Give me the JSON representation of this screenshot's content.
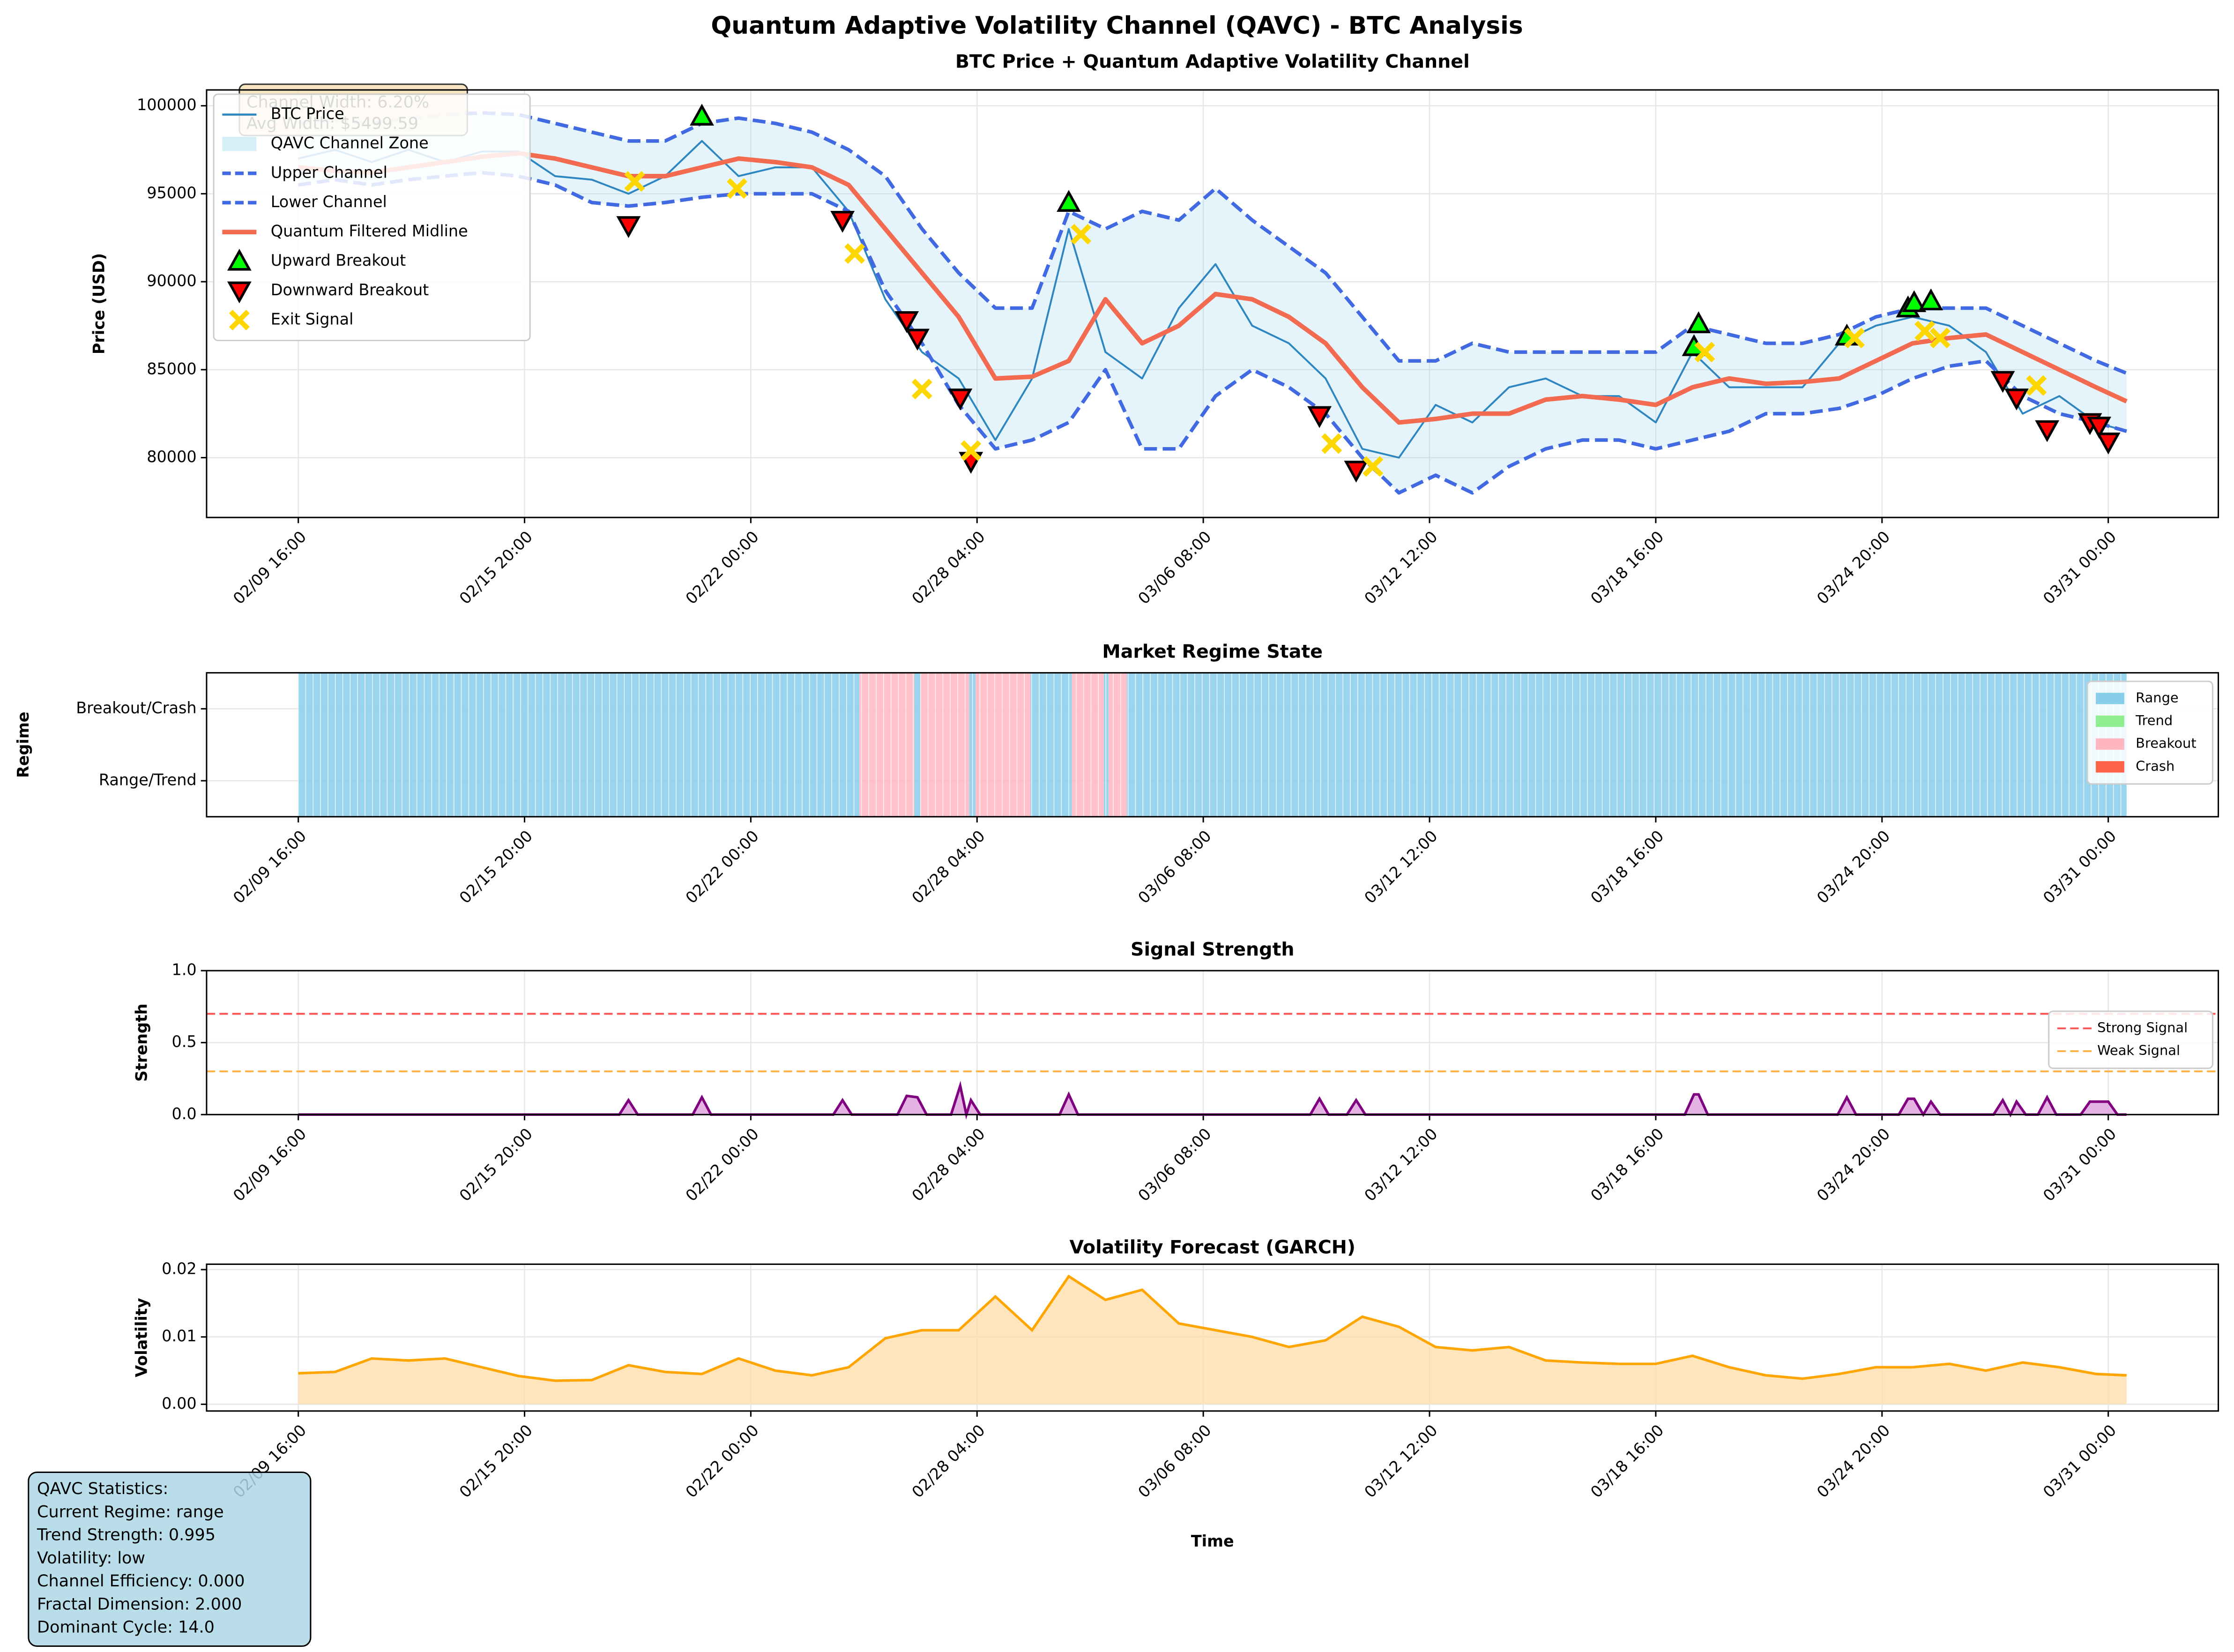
{
  "title": "Quantum Adaptive Volatility Channel (QAVC) - BTC Analysis",
  "stats": [
    "QAVC Statistics:",
    "Current Regime: range",
    "Trend Strength: 0.995",
    "Volatility: low",
    "Channel Efficiency: 0.000",
    "Fractal Dimension: 2.000",
    "Dominant Cycle: 14.0"
  ],
  "chart_data": [
    {
      "type": "line",
      "title": "BTC Price + Quantum Adaptive Volatility Channel",
      "ylabel": "Price (USD)",
      "grid": true,
      "legend": "upper left",
      "annotation": [
        "Channel Width: 6.20%",
        "Avg Width: $5499.59"
      ],
      "xlim": [
        "02/07 04:00",
        "04/03 00:00"
      ],
      "ylim": [
        76600,
        100900
      ],
      "xticks": [
        "02/09 16:00",
        "02/15 20:00",
        "02/22 00:00",
        "02/28 04:00",
        "03/06 08:00",
        "03/12 12:00",
        "03/18 16:00",
        "03/24 20:00",
        "03/31 00:00"
      ],
      "yticks": [
        80000,
        85000,
        90000,
        95000,
        100000
      ],
      "x": [
        "02/09 16:00",
        "02/10 16:00",
        "02/11 16:00",
        "02/12 16:00",
        "02/13 16:00",
        "02/14 16:00",
        "02/15 16:00",
        "02/16 16:00",
        "02/17 16:00",
        "02/18 16:00",
        "02/19 16:00",
        "02/20 16:00",
        "02/21 16:00",
        "02/22 16:00",
        "02/23 16:00",
        "02/24 16:00",
        "02/25 16:00",
        "02/26 16:00",
        "02/27 16:00",
        "02/28 16:00",
        "03/01 16:00",
        "03/02 16:00",
        "03/03 16:00",
        "03/04 16:00",
        "03/05 16:00",
        "03/06 16:00",
        "03/07 16:00",
        "03/08 16:00",
        "03/09 16:00",
        "03/10 16:00",
        "03/11 16:00",
        "03/12 16:00",
        "03/13 16:00",
        "03/14 16:00",
        "03/15 16:00",
        "03/16 16:00",
        "03/17 16:00",
        "03/18 16:00",
        "03/19 16:00",
        "03/20 16:00",
        "03/21 16:00",
        "03/22 16:00",
        "03/23 16:00",
        "03/24 16:00",
        "03/25 16:00",
        "03/26 16:00",
        "03/27 16:00",
        "03/28 16:00",
        "03/29 16:00",
        "03/30 16:00",
        "03/31 12:00"
      ],
      "band": {
        "name": "QAVC Channel Zone",
        "color": "#87ceeb",
        "between": [
          1,
          2
        ]
      },
      "series": [
        {
          "name": "BTC Price",
          "color": "#2e86c1",
          "width": 1.3,
          "values": [
            97000,
            97500,
            96800,
            97500,
            96800,
            97400,
            97400,
            96000,
            95800,
            95000,
            96000,
            98000,
            96000,
            96500,
            96500,
            94000,
            89000,
            86000,
            84500,
            81000,
            84500,
            93000,
            86000,
            84500,
            88500,
            91000,
            87500,
            86500,
            84500,
            80500,
            80000,
            83000,
            82000,
            84000,
            84500,
            83500,
            83500,
            82000,
            86000,
            84000,
            84000,
            84000,
            86500,
            87500,
            88000,
            87500,
            86000,
            82500,
            83500,
            82000,
            81500
          ]
        },
        {
          "name": "Upper Channel",
          "color": "#4169e1",
          "width": 2.5,
          "dash": true,
          "values": [
            99000,
            99200,
            99000,
            99300,
            99500,
            99600,
            99500,
            99000,
            98500,
            98000,
            98000,
            99000,
            99300,
            99000,
            98500,
            97500,
            96000,
            93000,
            90500,
            88500,
            88500,
            94000,
            93000,
            94000,
            93500,
            95300,
            93500,
            92000,
            90500,
            88000,
            85500,
            85500,
            86500,
            86000,
            86000,
            86000,
            86000,
            86000,
            87500,
            87000,
            86500,
            86500,
            87000,
            88000,
            88500,
            88500,
            88500,
            87500,
            86500,
            85500,
            84800
          ]
        },
        {
          "name": "Lower Channel",
          "color": "#4169e1",
          "width": 2.5,
          "dash": true,
          "values": [
            95500,
            95800,
            95500,
            95800,
            96000,
            96200,
            96000,
            95500,
            94500,
            94300,
            94500,
            94800,
            95000,
            95000,
            95000,
            94000,
            89500,
            86500,
            83000,
            80500,
            81000,
            82000,
            85000,
            80500,
            80500,
            83500,
            85000,
            84000,
            82500,
            80000,
            78000,
            79000,
            78000,
            79500,
            80500,
            81000,
            81000,
            80500,
            81000,
            81500,
            82500,
            82500,
            82800,
            83500,
            84500,
            85200,
            85500,
            83500,
            82500,
            82000,
            81500
          ]
        },
        {
          "name": "Quantum Filtered Midline",
          "color": "#f26b50",
          "width": 3.2,
          "values": [
            96500,
            96300,
            96200,
            96500,
            96800,
            97100,
            97300,
            97000,
            96500,
            96000,
            96000,
            96500,
            97000,
            96800,
            96500,
            95500,
            93000,
            90500,
            88000,
            84500,
            84600,
            85500,
            89000,
            86500,
            87500,
            89300,
            89000,
            88000,
            86500,
            84000,
            82000,
            82200,
            82500,
            82500,
            83300,
            83500,
            83300,
            83000,
            84000,
            84500,
            84200,
            84300,
            84500,
            85500,
            86500,
            86800,
            87000,
            86000,
            85000,
            84000,
            83200
          ]
        }
      ],
      "markers": [
        {
          "name": "Upward Breakout",
          "color": "#00ff00",
          "shape": "up",
          "x": [
            "02/20 16:00",
            "03/02 16:00",
            "03/19 17:00",
            "03/19 20:00",
            "03/23 21:00",
            "03/25 13:00",
            "03/25 17:00",
            "03/26 04:00"
          ],
          "values": [
            99400,
            94500,
            86300,
            87600,
            86900,
            88500,
            88800,
            88900
          ]
        },
        {
          "name": "Downward Breakout",
          "color": "#ff0000",
          "shape": "down",
          "x": [
            "02/18 16:00",
            "02/24 12:00",
            "02/26 06:00",
            "02/26 13:00",
            "02/27 17:00",
            "02/28 00:00",
            "03/09 12:00",
            "03/10 12:00",
            "03/28 03:00",
            "03/28 12:00",
            "03/29 08:00",
            "03/30 12:00",
            "03/30 18:00",
            "03/31 00:00"
          ],
          "values": [
            93200,
            93500,
            87800,
            86800,
            83400,
            79800,
            82400,
            79300,
            84400,
            83400,
            81600,
            82000,
            81800,
            80900
          ]
        },
        {
          "name": "Exit Signal",
          "color": "#ffd700",
          "shape": "x",
          "x": [
            "02/18 20:00",
            "02/21 15:00",
            "02/24 20:00",
            "02/26 16:00",
            "02/28 00:00",
            "03/03 00:00",
            "03/09 20:00",
            "03/10 23:00",
            "03/20 00:00",
            "03/24 02:00",
            "03/26 00:00",
            "03/26 10:00",
            "03/29 01:00"
          ],
          "values": [
            95700,
            95300,
            91600,
            83900,
            80400,
            92700,
            80800,
            79500,
            86000,
            86800,
            87200,
            86800,
            84100
          ]
        }
      ]
    },
    {
      "type": "regime",
      "title": "Market Regime State",
      "ylabel": "Regime",
      "grid": true,
      "legend": "upper right",
      "xlim": [
        "02/07 04:00",
        "04/03 00:00"
      ],
      "ylim": [
        -0.5,
        1.5
      ],
      "xticks": [
        "02/09 16:00",
        "02/15 20:00",
        "02/22 00:00",
        "02/28 04:00",
        "03/06 08:00",
        "03/12 12:00",
        "03/18 16:00",
        "03/24 20:00",
        "03/31 00:00"
      ],
      "yticks": [
        {
          "value": 0,
          "label": "Range/Trend"
        },
        {
          "value": 1,
          "label": "Breakout/Crash"
        }
      ],
      "states": [
        {
          "name": "Range",
          "color": "#87ceeb"
        },
        {
          "name": "Trend",
          "color": "#90ee90"
        },
        {
          "name": "Breakout",
          "color": "#ffb6c1"
        },
        {
          "name": "Crash",
          "color": "#ff6347"
        }
      ],
      "segments": {
        "start": [
          "02/09 16:00",
          "02/24 23:00",
          "02/26 11:00",
          "02/26 15:00",
          "02/27 23:00",
          "02/28 03:00",
          "03/01 15:00",
          "03/02 18:00",
          "03/03 15:00",
          "03/03 18:00",
          "03/04 06:00"
        ],
        "end": [
          "02/24 23:00",
          "02/26 11:00",
          "02/26 15:00",
          "02/27 23:00",
          "02/28 03:00",
          "03/01 15:00",
          "03/02 18:00",
          "03/03 15:00",
          "03/03 18:00",
          "03/04 06:00",
          "03/31 12:00"
        ],
        "state": [
          0,
          2,
          0,
          2,
          0,
          2,
          0,
          2,
          0,
          2,
          0
        ]
      }
    },
    {
      "type": "area",
      "title": "Signal Strength",
      "ylabel": "Strength",
      "grid": true,
      "legend": "center right",
      "color": "#800080",
      "fill": "#dda0dd",
      "xlim": [
        "02/07 04:00",
        "04/03 00:00"
      ],
      "ylim": [
        0,
        1
      ],
      "xticks": [
        "02/09 16:00",
        "02/15 20:00",
        "02/22 00:00",
        "02/28 04:00",
        "03/06 08:00",
        "03/12 12:00",
        "03/18 16:00",
        "03/24 20:00",
        "03/31 00:00"
      ],
      "yticks": [
        {
          "value": 0,
          "label": "0.0"
        },
        {
          "value": 0.5,
          "label": "0.5"
        },
        {
          "value": 1,
          "label": "1.0"
        }
      ],
      "hlines": [
        {
          "name": "Strong Signal",
          "value": 0.7,
          "color": "#ff5555"
        },
        {
          "name": "Weak Signal",
          "value": 0.3,
          "color": "#ffb347"
        }
      ],
      "x": [
        "02/09 16:00",
        "02/18 10:00",
        "02/18 16:00",
        "02/18 22:00",
        "02/20 10:00",
        "02/20 16:00",
        "02/20 22:00",
        "02/24 06:00",
        "02/24 12:00",
        "02/24 18:00",
        "02/26 00:00",
        "02/26 06:00",
        "02/26 13:00",
        "02/26 19:00",
        "02/27 11:00",
        "02/27 17:00",
        "02/27 21:00",
        "02/28 00:00",
        "02/28 06:00",
        "03/02 10:00",
        "03/02 16:00",
        "03/02 22:00",
        "03/09 06:00",
        "03/09 12:00",
        "03/09 18:00",
        "03/10 06:00",
        "03/10 12:00",
        "03/10 18:00",
        "03/19 11:00",
        "03/19 17:00",
        "03/19 20:00",
        "03/20 02:00",
        "03/23 15:00",
        "03/23 21:00",
        "03/24 03:00",
        "03/25 07:00",
        "03/25 13:00",
        "03/25 17:00",
        "03/25 23:00",
        "03/26 04:00",
        "03/26 10:00",
        "03/27 21:00",
        "03/28 03:00",
        "03/28 08:00",
        "03/28 12:00",
        "03/28 18:00",
        "03/29 02:00",
        "03/29 08:00",
        "03/29 14:00",
        "03/30 06:00",
        "03/30 12:00",
        "03/31 00:00",
        "03/31 06:00",
        "03/31 12:00"
      ],
      "values": [
        0,
        0,
        0.1,
        0,
        0,
        0.12,
        0,
        0,
        0.1,
        0,
        0,
        0.13,
        0.12,
        0,
        0,
        0.2,
        0,
        0.1,
        0,
        0,
        0.14,
        0,
        0,
        0.11,
        0,
        0,
        0.1,
        0,
        0,
        0.14,
        0.14,
        0,
        0,
        0.12,
        0,
        0,
        0.11,
        0.11,
        0,
        0.09,
        0,
        0,
        0.1,
        0,
        0.09,
        0,
        0,
        0.12,
        0,
        0,
        0.09,
        0.09,
        0,
        0
      ]
    },
    {
      "type": "area",
      "title": "Volatility Forecast (GARCH)",
      "ylabel": "Volatility",
      "xlabel": "Time",
      "grid": true,
      "color": "#ffa500",
      "fill": "#ffdead",
      "xlim": [
        "02/07 04:00",
        "04/03 00:00"
      ],
      "ylim": [
        -0.001,
        0.0208
      ],
      "xticks": [
        "02/09 16:00",
        "02/15 20:00",
        "02/22 00:00",
        "02/28 04:00",
        "03/06 08:00",
        "03/12 12:00",
        "03/18 16:00",
        "03/24 20:00",
        "03/31 00:00"
      ],
      "yticks": [
        {
          "value": 0,
          "label": "0.00"
        },
        {
          "value": 0.01,
          "label": "0.01"
        },
        {
          "value": 0.02,
          "label": "0.02"
        }
      ],
      "x": [
        "02/09 16:00",
        "02/10 16:00",
        "02/11 16:00",
        "02/12 16:00",
        "02/13 16:00",
        "02/14 16:00",
        "02/15 16:00",
        "02/16 16:00",
        "02/17 16:00",
        "02/18 16:00",
        "02/19 16:00",
        "02/20 16:00",
        "02/21 16:00",
        "02/22 16:00",
        "02/23 16:00",
        "02/24 16:00",
        "02/25 16:00",
        "02/26 16:00",
        "02/27 16:00",
        "02/28 16:00",
        "03/01 16:00",
        "03/02 16:00",
        "03/03 16:00",
        "03/04 16:00",
        "03/05 16:00",
        "03/06 16:00",
        "03/07 16:00",
        "03/08 16:00",
        "03/09 16:00",
        "03/10 16:00",
        "03/11 16:00",
        "03/12 16:00",
        "03/13 16:00",
        "03/14 16:00",
        "03/15 16:00",
        "03/16 16:00",
        "03/17 16:00",
        "03/18 16:00",
        "03/19 16:00",
        "03/20 16:00",
        "03/21 16:00",
        "03/22 16:00",
        "03/23 16:00",
        "03/24 16:00",
        "03/25 16:00",
        "03/26 16:00",
        "03/27 16:00",
        "03/28 16:00",
        "03/29 16:00",
        "03/30 16:00",
        "03/31 12:00"
      ],
      "values": [
        0.0046,
        0.0048,
        0.0068,
        0.0065,
        0.0068,
        0.0055,
        0.0042,
        0.0035,
        0.0036,
        0.0058,
        0.0048,
        0.0045,
        0.0068,
        0.005,
        0.0043,
        0.0055,
        0.0098,
        0.011,
        0.011,
        0.016,
        0.011,
        0.019,
        0.0155,
        0.017,
        0.012,
        0.011,
        0.01,
        0.0085,
        0.0095,
        0.013,
        0.0115,
        0.0085,
        0.008,
        0.0085,
        0.0065,
        0.0062,
        0.006,
        0.006,
        0.0072,
        0.0055,
        0.0043,
        0.0038,
        0.0045,
        0.0055,
        0.0055,
        0.006,
        0.005,
        0.0062,
        0.0055,
        0.0045,
        0.0043
      ]
    }
  ]
}
